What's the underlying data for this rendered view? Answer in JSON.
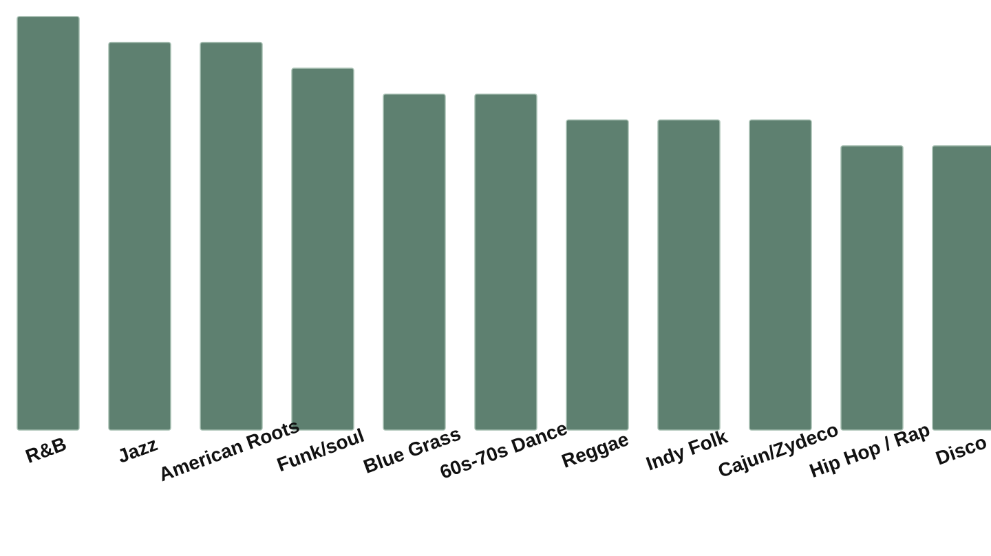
{
  "chart_data": {
    "type": "bar",
    "title": "",
    "xlabel": "",
    "ylabel": "",
    "categories": [
      "R&B",
      "Jazz",
      "American Roots",
      "Funk/soul",
      "Blue Grass",
      "60s-70s Dance",
      "Reggae",
      "Indy Folk",
      "Cajun/Zydeco",
      "Hip Hop / Rap",
      "Disco"
    ],
    "values": [
      16,
      15,
      15,
      14,
      13,
      13,
      12,
      12,
      12,
      11,
      11
    ],
    "ylim": [
      0,
      16
    ],
    "grid": false,
    "bar_color": "#5e8070",
    "label_rotation_deg": -20
  }
}
